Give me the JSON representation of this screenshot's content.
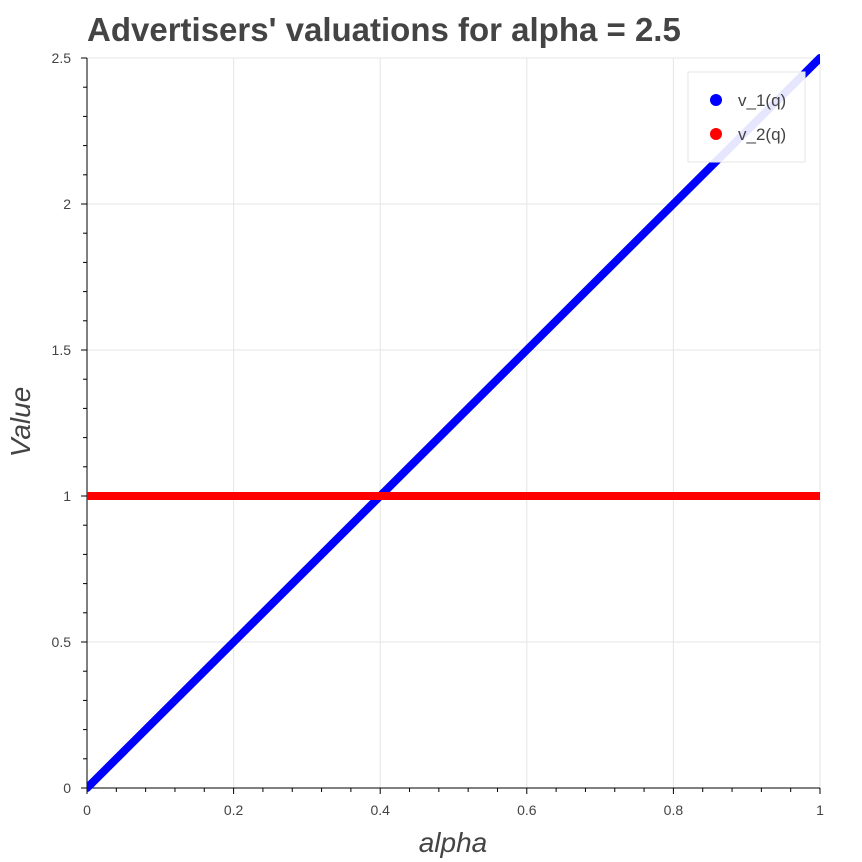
{
  "chart_data": {
    "type": "line",
    "title": "Advertisers' valuations for alpha = 2.5",
    "xlabel": "alpha",
    "ylabel": "Value",
    "xlim": [
      0,
      1
    ],
    "ylim": [
      0,
      2.5
    ],
    "x_ticks": [
      "0",
      "0.2",
      "0.4",
      "0.6",
      "0.8",
      "1"
    ],
    "y_ticks": [
      "0",
      "0.5",
      "1",
      "1.5",
      "2",
      "2.5"
    ],
    "grid": true,
    "legend_position": "top-right",
    "series": [
      {
        "name": "v_1(q)",
        "color": "#0000ff",
        "x": [
          0,
          1
        ],
        "y": [
          0,
          2.5
        ]
      },
      {
        "name": "v_2(q)",
        "color": "#ff0000",
        "x": [
          0,
          1
        ],
        "y": [
          1,
          1
        ]
      }
    ]
  }
}
